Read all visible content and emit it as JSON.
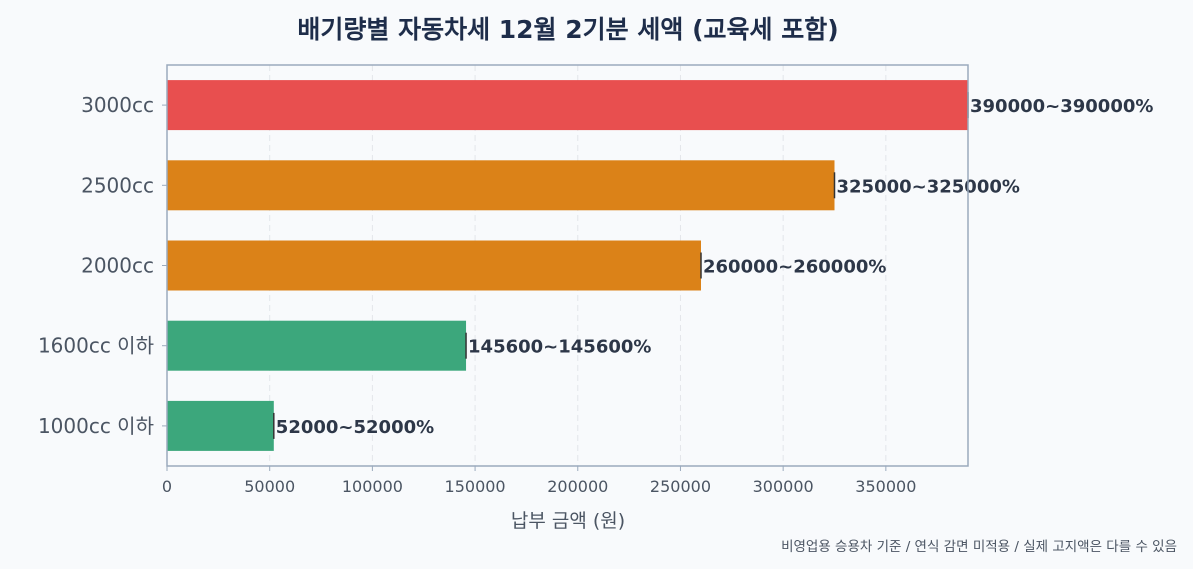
{
  "chart_data": {
    "type": "bar",
    "orientation": "horizontal",
    "title": "배기량별 자동차세 12월 2기분 세액 (교육세 포함)",
    "xlabel": "납부 금액 (원)",
    "ylabel": "",
    "footnote": "비영업용 승용차 기준 / 연식 감면 미적용 / 실제 고지액은 다를 수 있음",
    "categories": [
      "3000cc",
      "2500cc",
      "2000cc",
      "1600cc 이하",
      "1000cc 이하"
    ],
    "values": [
      390000,
      325000,
      260000,
      145600,
      52000
    ],
    "data_labels": [
      "390000~390000%",
      "325000~325000%",
      "260000~260000%",
      "145600~145600%",
      "52000~52000%"
    ],
    "bar_colors": [
      "#e84f4f",
      "#db8218",
      "#db8218",
      "#3ca77c",
      "#3ca77c"
    ],
    "xlim": [
      0,
      390000
    ],
    "xticks": [
      0,
      50000,
      100000,
      150000,
      200000,
      250000,
      300000,
      350000
    ],
    "xtick_labels": [
      "0",
      "50000",
      "100000",
      "150000",
      "200000",
      "250000",
      "300000",
      "350000"
    ],
    "grid": "vertical-dashed",
    "legend": "none"
  },
  "colors": {
    "background": "#f8fafc",
    "title": "#1e2d4a",
    "axis_frame": "#9aaabd",
    "tick_text": "#4b5563",
    "data_label": "#2d3748",
    "grid": "#e3e6ea"
  }
}
